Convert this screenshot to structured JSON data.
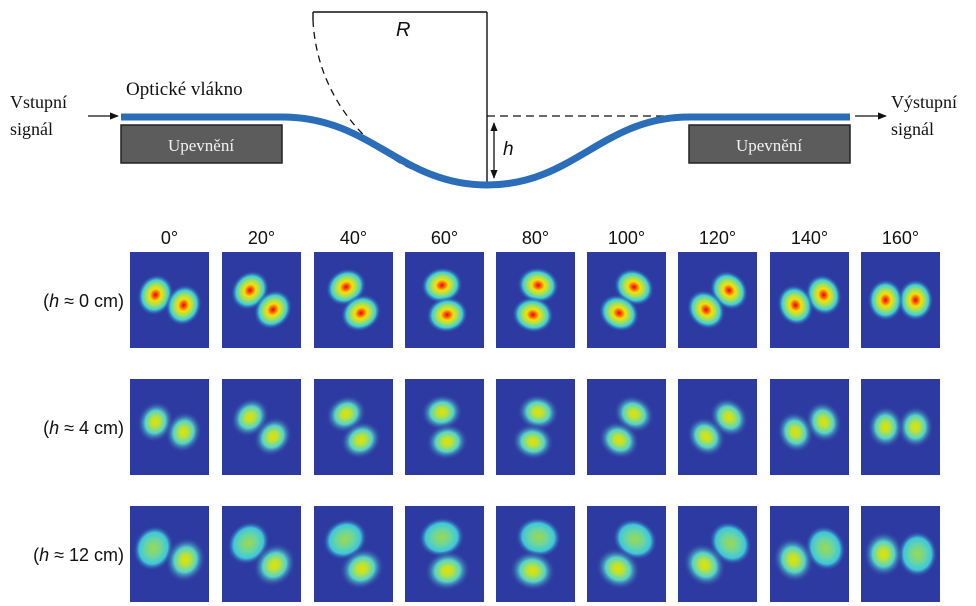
{
  "setup": {
    "input_label": [
      "Vstupní",
      "signál"
    ],
    "output_label": [
      "Výstupní",
      "signál"
    ],
    "fiber_label": "Optické vlákno",
    "clamp_label": "Upevnění",
    "radius_label": "R",
    "depth_label": "h",
    "colors": {
      "fiber": "#2a6db8",
      "clamp": "#5c5c5c",
      "text": "#111111"
    }
  },
  "mode_grid": {
    "angles": [
      "0°",
      "20°",
      "40°",
      "60°",
      "80°",
      "100°",
      "120°",
      "140°",
      "160°"
    ],
    "angle_values": [
      0,
      20,
      40,
      60,
      80,
      100,
      120,
      140,
      160
    ],
    "rows": [
      {
        "label_prefix": "(",
        "label_var": "h",
        "label_suffix": " ≈ 0 cm)"
      },
      {
        "label_prefix": "(",
        "label_var": "h",
        "label_suffix": " ≈ 4 cm)"
      },
      {
        "label_prefix": "(",
        "label_var": "h",
        "label_suffix": " ≈ 12 cm)"
      }
    ],
    "colors": {
      "background": "#2d3aa2"
    }
  }
}
